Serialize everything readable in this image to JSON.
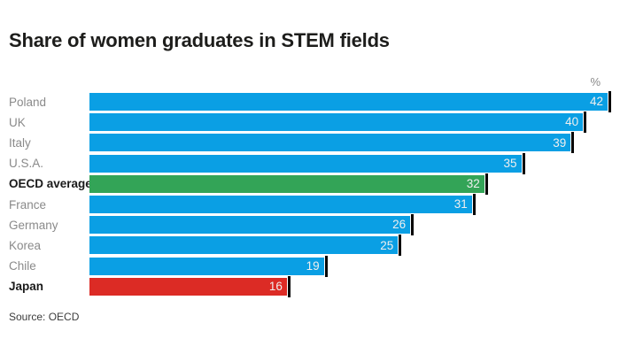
{
  "page": {
    "title": "Share of women graduates in STEM fields",
    "unit_label": "%",
    "source": "Source: OECD"
  },
  "chart_data": {
    "type": "bar",
    "orientation": "horizontal",
    "title": "Share of women graduates in STEM fields",
    "unit": "%",
    "xlim": [
      0,
      42
    ],
    "grid": false,
    "legend": "none",
    "value_labels": "inside-end",
    "categories": [
      "Poland",
      "UK",
      "Italy",
      "U.S.A.",
      "OECD average",
      "France",
      "Germany",
      "Korea",
      "Chile",
      "Japan"
    ],
    "values": [
      42,
      40,
      39,
      35,
      32,
      31,
      26,
      25,
      19,
      16
    ],
    "bar_colors": [
      "#0a9fe4",
      "#0a9fe4",
      "#0a9fe4",
      "#0a9fe4",
      "#33a457",
      "#0a9fe4",
      "#0a9fe4",
      "#0a9fe4",
      "#0a9fe4",
      "#dc2b25"
    ],
    "bold_label_categories": [
      "OECD average",
      "Japan"
    ],
    "colors": {
      "default_bar": "#0a9fe4",
      "highlight_green": "#33a457",
      "highlight_red": "#dc2b25",
      "end_tick": "#050505",
      "value_text": "#efefef",
      "label_text": "#8a8a8a",
      "label_text_bold": "#1a1a1a"
    },
    "source": "Source: OECD"
  }
}
